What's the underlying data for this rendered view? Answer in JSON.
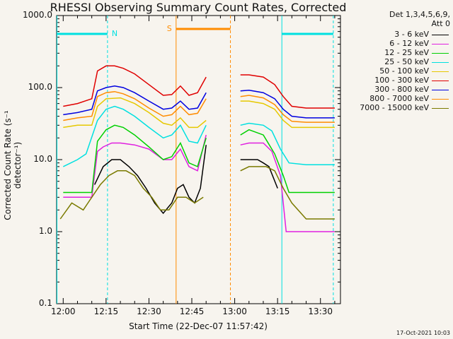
{
  "chart_data": {
    "type": "line",
    "title": "RHESSI Observing Summary Count Rates, Corrected",
    "ylabel": "Corrected Count Rate (s⁻¹ detector⁻¹)",
    "xlabel": "Start Time (22-Dec-07 11:57:42)",
    "yscale": "log",
    "ylim": [
      0.1,
      1000
    ],
    "xlim": [
      "11:57:42",
      "13:37:00"
    ],
    "y_ticks": [
      "0.1",
      "1.0",
      "10.0",
      "100.0",
      "1000.0"
    ],
    "x_ticks": [
      "12:00",
      "12:15",
      "12:30",
      "12:45",
      "13:00",
      "13:15",
      "13:30"
    ],
    "detector_info_line1": "Det 1,3,4,5,6,9,",
    "detector_info_line2": "Att 0",
    "series": [
      {
        "name": "3 - 6 keV",
        "color": "#000000",
        "x": [
          "12:11:00",
          "12:14:00",
          "12:17:00",
          "12:20:00",
          "12:23:00",
          "12:26:00",
          "12:29:00",
          "12:32:00",
          "12:35:00",
          "12:38:00",
          "12:40:00",
          "12:42:00",
          "12:44:00",
          "12:46:00",
          "12:48:00",
          "12:50:00",
          "13:02:00",
          "13:05:00",
          "13:08:00",
          "13:10:00",
          "13:12:00",
          "13:15:00"
        ],
        "values": [
          4.5,
          8,
          10,
          10,
          8,
          6,
          4,
          2.5,
          1.8,
          2.5,
          4,
          4.5,
          3,
          2.5,
          4,
          16,
          10,
          10,
          10,
          9,
          8,
          4
        ]
      },
      {
        "name": "6 - 12 keV",
        "color": "#e020e0",
        "x": [
          "12:00:00",
          "12:05:00",
          "12:10:00",
          "12:12:00",
          "12:14:00",
          "12:17:00",
          "12:20:00",
          "12:25:00",
          "12:30:00",
          "12:35:00",
          "12:38:00",
          "12:41:00",
          "12:44:00",
          "12:47:00",
          "12:50:00",
          "13:02:00",
          "13:05:00",
          "13:10:00",
          "13:13:00",
          "13:16:00",
          "13:18:00",
          "13:20:00",
          "13:35:00"
        ],
        "values": [
          3,
          3,
          3,
          13,
          15,
          17,
          17,
          16,
          14,
          10,
          10,
          14,
          8,
          7,
          22,
          16,
          17,
          17,
          13,
          6,
          1,
          1,
          1
        ]
      },
      {
        "name": "12 - 25 keV",
        "color": "#00d000",
        "x": [
          "12:00:00",
          "12:05:00",
          "12:10:00",
          "12:12:00",
          "12:15:00",
          "12:18:00",
          "12:21:00",
          "12:25:00",
          "12:30:00",
          "12:35:00",
          "12:38:00",
          "12:41:00",
          "12:44:00",
          "12:47:00",
          "12:50:00",
          "13:02:00",
          "13:05:00",
          "13:10:00",
          "13:14:00",
          "13:17:00",
          "13:19:00",
          "13:25:00",
          "13:35:00"
        ],
        "values": [
          3.5,
          3.5,
          3.5,
          18,
          26,
          30,
          28,
          22,
          15,
          10,
          11,
          17,
          9,
          8,
          20,
          22,
          26,
          22,
          12,
          6,
          3.5,
          3.5,
          3.5
        ]
      },
      {
        "name": "25 - 50 keV",
        "color": "#00e0e0",
        "x": [
          "12:00:00",
          "12:05:00",
          "12:08:00",
          "12:12:00",
          "12:15:00",
          "12:18:00",
          "12:21:00",
          "12:25:00",
          "12:30:00",
          "12:35:00",
          "12:38:00",
          "12:41:00",
          "12:44:00",
          "12:47:00",
          "12:50:00",
          "13:02:00",
          "13:05:00",
          "13:10:00",
          "13:13:00",
          "13:16:00",
          "13:19:00",
          "13:25:00",
          "13:35:00"
        ],
        "values": [
          8,
          10,
          12,
          35,
          50,
          55,
          50,
          40,
          28,
          20,
          22,
          30,
          18,
          17,
          30,
          30,
          32,
          30,
          25,
          14,
          9,
          8.5,
          8.5
        ]
      },
      {
        "name": "50 - 100 keV",
        "color": "#e6c800",
        "x": [
          "12:00:00",
          "12:05:00",
          "12:10:00",
          "12:12:00",
          "12:15:00",
          "12:20:00",
          "12:25:00",
          "12:30:00",
          "12:35:00",
          "12:38:00",
          "12:41:00",
          "12:44:00",
          "12:47:00",
          "12:50:00",
          "13:02:00",
          "13:05:00",
          "13:10:00",
          "13:14:00",
          "13:17:00",
          "13:20:00",
          "13:25:00",
          "13:35:00"
        ],
        "values": [
          28,
          30,
          30,
          55,
          70,
          72,
          60,
          45,
          32,
          30,
          38,
          28,
          28,
          35,
          65,
          65,
          60,
          50,
          35,
          28,
          28,
          28
        ]
      },
      {
        "name": "100 - 300 keV",
        "color": "#e00000",
        "x": [
          "12:00:00",
          "12:05:00",
          "12:10:00",
          "12:12:00",
          "12:15:00",
          "12:18:00",
          "12:21:00",
          "12:25:00",
          "12:30:00",
          "12:35:00",
          "12:38:00",
          "12:41:00",
          "12:44:00",
          "12:47:00",
          "12:50:00",
          "13:02:00",
          "13:05:00",
          "13:10:00",
          "13:14:00",
          "13:17:00",
          "13:20:00",
          "13:25:00",
          "13:35:00"
        ],
        "values": [
          55,
          60,
          70,
          170,
          200,
          200,
          185,
          155,
          110,
          78,
          80,
          105,
          78,
          85,
          140,
          150,
          150,
          140,
          110,
          75,
          55,
          52,
          52
        ]
      },
      {
        "name": "300 - 800 keV",
        "color": "#0000e0",
        "x": [
          "12:00:00",
          "12:05:00",
          "12:10:00",
          "12:12:00",
          "12:15:00",
          "12:18:00",
          "12:21:00",
          "12:25:00",
          "12:30:00",
          "12:35:00",
          "12:38:00",
          "12:41:00",
          "12:44:00",
          "12:47:00",
          "12:50:00",
          "13:02:00",
          "13:05:00",
          "13:10:00",
          "13:14:00",
          "13:17:00",
          "13:20:00",
          "13:25:00",
          "13:35:00"
        ],
        "values": [
          42,
          45,
          50,
          90,
          100,
          105,
          100,
          85,
          65,
          50,
          52,
          65,
          50,
          52,
          85,
          90,
          92,
          85,
          70,
          50,
          40,
          38,
          38
        ]
      },
      {
        "name": "800 - 7000 keV",
        "color": "#ff8c00",
        "x": [
          "12:00:00",
          "12:05:00",
          "12:10:00",
          "12:12:00",
          "12:15:00",
          "12:18:00",
          "12:21:00",
          "12:25:00",
          "12:30:00",
          "12:35:00",
          "12:38:00",
          "12:41:00",
          "12:44:00",
          "12:47:00",
          "12:50:00",
          "13:02:00",
          "13:05:00",
          "13:10:00",
          "13:14:00",
          "13:17:00",
          "13:20:00",
          "13:25:00",
          "13:35:00"
        ],
        "values": [
          35,
          38,
          40,
          75,
          85,
          88,
          82,
          70,
          52,
          40,
          42,
          55,
          42,
          44,
          70,
          75,
          78,
          72,
          58,
          42,
          34,
          33,
          33
        ]
      },
      {
        "name": "7000 - 15000 keV",
        "color": "#7a7a00",
        "x": [
          "11:59:00",
          "12:03:00",
          "12:07:00",
          "12:10:00",
          "12:13:00",
          "12:16:00",
          "12:19:00",
          "12:22:00",
          "12:25:00",
          "12:28:00",
          "12:31:00",
          "12:34:00",
          "12:37:00",
          "12:40:00",
          "12:43:00",
          "12:46:00",
          "12:49:00",
          "13:02:00",
          "13:05:00",
          "13:08:00",
          "13:11:00",
          "13:14:00",
          "13:17:00",
          "13:20:00",
          "13:25:00",
          "13:30:00",
          "13:35:00"
        ],
        "values": [
          1.5,
          2.5,
          2,
          3,
          4.5,
          6,
          7,
          7,
          6,
          4,
          3,
          2,
          2,
          3,
          3,
          2.5,
          3,
          7,
          8,
          8,
          8,
          7,
          4,
          2.5,
          1.5,
          1.5,
          1.5
        ]
      }
    ],
    "vertical_markers": [
      {
        "time": "11:57:50",
        "color": "#00e0e0",
        "style": "solid"
      },
      {
        "time": "12:15:30",
        "color": "#00e0e0",
        "style": "dashed"
      },
      {
        "time": "12:39:30",
        "color": "#ff8c00",
        "style": "solid"
      },
      {
        "time": "12:58:30",
        "color": "#ff8c00",
        "style": "dashed"
      },
      {
        "time": "13:16:30",
        "color": "#00e0e0",
        "style": "solid"
      },
      {
        "time": "13:34:30",
        "color": "#00e0e0",
        "style": "dashed"
      }
    ],
    "interval_bars": [
      {
        "label": "N",
        "start": "11:57:50",
        "end": "12:15:30",
        "color": "#00e0e0"
      },
      {
        "label": "S",
        "start": "12:39:30",
        "end": "12:58:30",
        "color": "#ff8c00"
      },
      {
        "label": "",
        "start": "13:16:30",
        "end": "13:34:30",
        "color": "#00e0e0"
      }
    ]
  },
  "timestamp": "17-Oct-2021 10:03"
}
